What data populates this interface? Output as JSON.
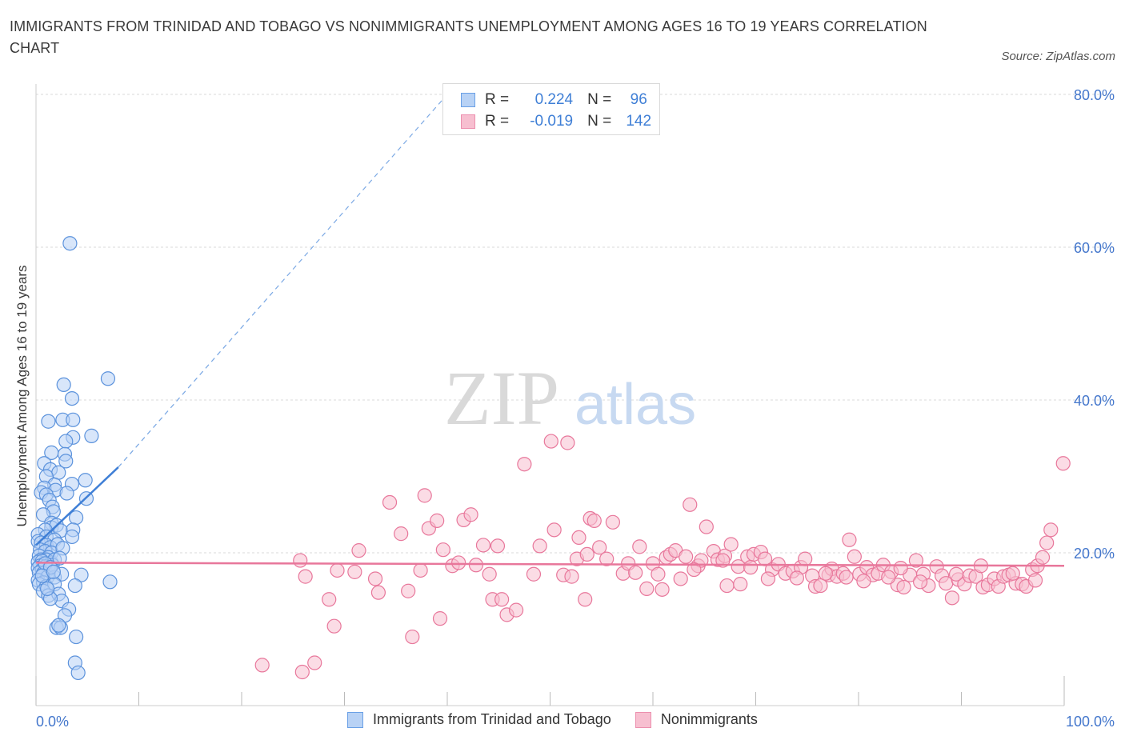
{
  "title": "IMMIGRANTS FROM TRINIDAD AND TOBAGO VS NONIMMIGRANTS UNEMPLOYMENT AMONG AGES 16 TO 19 YEARS CORRELATION CHART",
  "source": "Source: ZipAtlas.com",
  "watermark": {
    "zip": "ZIP",
    "atlas": "atlas"
  },
  "colors": {
    "blue": "#3f7fd6",
    "blue_fill": "#b8d2f5",
    "pink": "#e8779b",
    "pink_fill": "#f7bfd0",
    "grid": "#d9d9d9",
    "axis_text": "#4477cc"
  },
  "legend": {
    "rows": [
      {
        "r_label": "R =",
        "r_value": "0.224",
        "n_label": "N =",
        "n_value": "96"
      },
      {
        "r_label": "R =",
        "r_value": "-0.019",
        "n_label": "N =",
        "n_value": "142"
      }
    ]
  },
  "bottom_legend": [
    "Immigrants from Trinidad and Tobago",
    "Nonimmigrants"
  ],
  "chart_data": {
    "type": "scatter",
    "xlabel": "",
    "ylabel": "Unemployment Among Ages 16 to 19 years",
    "xlim": [
      0,
      100
    ],
    "ylim": [
      0,
      80
    ],
    "x_tick_labels": [
      "0.0%",
      "100.0%"
    ],
    "y_tick_labels": [
      {
        "v": 20,
        "label": "20.0%"
      },
      {
        "v": 40,
        "label": "40.0%"
      },
      {
        "v": 60,
        "label": "60.0%"
      },
      {
        "v": 80,
        "label": "80.0%"
      }
    ],
    "series": [
      {
        "name": "Immigrants from Trinidad and Tobago",
        "r": 0.224,
        "n": 96,
        "trend": {
          "x0": 0,
          "y0": 21,
          "x1": 8.0,
          "y1": 31.2,
          "dashed_to_x": 40,
          "dashed_to_y": 80
        },
        "points": [
          [
            3.3,
            60.5
          ],
          [
            7.0,
            42.8
          ],
          [
            2.7,
            42.0
          ],
          [
            3.5,
            40.2
          ],
          [
            1.2,
            37.2
          ],
          [
            2.6,
            37.4
          ],
          [
            3.6,
            37.4
          ],
          [
            3.6,
            35.1
          ],
          [
            5.4,
            35.3
          ],
          [
            2.9,
            34.6
          ],
          [
            1.5,
            33.1
          ],
          [
            2.8,
            32.9
          ],
          [
            2.9,
            32.0
          ],
          [
            0.8,
            31.7
          ],
          [
            1.4,
            30.9
          ],
          [
            2.2,
            30.5
          ],
          [
            1.0,
            30.0
          ],
          [
            3.5,
            29.0
          ],
          [
            1.8,
            28.9
          ],
          [
            4.8,
            29.5
          ],
          [
            0.8,
            28.5
          ],
          [
            1.9,
            28.2
          ],
          [
            3.0,
            27.8
          ],
          [
            0.5,
            27.9
          ],
          [
            1.0,
            27.6
          ],
          [
            1.3,
            26.9
          ],
          [
            4.9,
            27.1
          ],
          [
            1.6,
            26.0
          ],
          [
            1.7,
            25.4
          ],
          [
            0.7,
            25.0
          ],
          [
            1.5,
            23.9
          ],
          [
            1.5,
            23.3
          ],
          [
            3.9,
            24.6
          ],
          [
            2.0,
            23.6
          ],
          [
            0.9,
            23.0
          ],
          [
            2.4,
            22.9
          ],
          [
            3.6,
            23.0
          ],
          [
            0.2,
            22.4
          ],
          [
            1.0,
            22.1
          ],
          [
            1.8,
            21.7
          ],
          [
            3.5,
            22.1
          ],
          [
            0.2,
            21.5
          ],
          [
            0.5,
            21.3
          ],
          [
            1.0,
            21.0
          ],
          [
            1.4,
            20.7
          ],
          [
            2.1,
            21.1
          ],
          [
            0.4,
            20.4
          ],
          [
            0.9,
            20.2
          ],
          [
            1.5,
            20.0
          ],
          [
            0.3,
            19.6
          ],
          [
            1.2,
            19.4
          ],
          [
            0.5,
            19.1
          ],
          [
            1.0,
            19.1
          ],
          [
            0.2,
            18.8
          ],
          [
            0.6,
            18.9
          ],
          [
            1.5,
            18.7
          ],
          [
            1.8,
            19.1
          ],
          [
            0.4,
            18.3
          ],
          [
            0.9,
            18.2
          ],
          [
            0.2,
            18.0
          ],
          [
            0.6,
            17.8
          ],
          [
            1.2,
            17.8
          ],
          [
            1.6,
            18.4
          ],
          [
            0.3,
            17.4
          ],
          [
            0.7,
            17.3
          ],
          [
            1.1,
            16.8
          ],
          [
            1.8,
            16.8
          ],
          [
            0.2,
            16.4
          ],
          [
            0.7,
            16.1
          ],
          [
            2.5,
            17.2
          ],
          [
            4.4,
            17.1
          ],
          [
            0.3,
            15.9
          ],
          [
            1.0,
            15.6
          ],
          [
            1.8,
            15.9
          ],
          [
            3.8,
            15.7
          ],
          [
            0.7,
            15.0
          ],
          [
            1.2,
            14.4
          ],
          [
            2.2,
            14.6
          ],
          [
            7.2,
            16.2
          ],
          [
            2.5,
            13.7
          ],
          [
            1.4,
            14.0
          ],
          [
            3.2,
            12.6
          ],
          [
            2.8,
            11.8
          ],
          [
            2.0,
            10.2
          ],
          [
            2.4,
            10.2
          ],
          [
            3.9,
            9.0
          ],
          [
            3.8,
            5.6
          ],
          [
            4.1,
            4.3
          ],
          [
            2.2,
            10.5
          ],
          [
            0.9,
            18.6
          ],
          [
            1.4,
            18.1
          ],
          [
            0.6,
            17.0
          ],
          [
            1.7,
            17.5
          ],
          [
            2.6,
            20.6
          ],
          [
            2.3,
            19.3
          ],
          [
            1.1,
            15.3
          ]
        ]
      },
      {
        "name": "Nonimmigrants",
        "r": -0.019,
        "n": 142,
        "trend": {
          "x0": 0,
          "y0": 18.7,
          "x1": 100,
          "y1": 18.3
        },
        "points": [
          [
            34.4,
            26.6
          ],
          [
            22.0,
            5.3
          ],
          [
            25.9,
            4.4
          ],
          [
            27.1,
            5.6
          ],
          [
            29.0,
            10.4
          ],
          [
            28.5,
            13.9
          ],
          [
            25.7,
            19.0
          ],
          [
            26.2,
            16.9
          ],
          [
            29.3,
            17.7
          ],
          [
            31.4,
            20.3
          ],
          [
            31.0,
            17.5
          ],
          [
            33.0,
            16.6
          ],
          [
            33.3,
            14.8
          ],
          [
            36.2,
            15.0
          ],
          [
            35.5,
            22.5
          ],
          [
            37.4,
            17.7
          ],
          [
            36.6,
            9.0
          ],
          [
            37.8,
            27.5
          ],
          [
            38.2,
            23.2
          ],
          [
            39.0,
            24.2
          ],
          [
            39.3,
            11.4
          ],
          [
            39.6,
            20.4
          ],
          [
            40.5,
            18.3
          ],
          [
            41.6,
            24.3
          ],
          [
            41.1,
            18.7
          ],
          [
            42.3,
            25.0
          ],
          [
            42.8,
            18.4
          ],
          [
            43.5,
            21.0
          ],
          [
            44.1,
            17.2
          ],
          [
            44.4,
            13.9
          ],
          [
            45.3,
            13.9
          ],
          [
            44.9,
            20.9
          ],
          [
            45.8,
            11.9
          ],
          [
            46.7,
            12.5
          ],
          [
            47.5,
            31.6
          ],
          [
            48.4,
            17.2
          ],
          [
            49.0,
            20.9
          ],
          [
            50.1,
            34.6
          ],
          [
            50.4,
            23.0
          ],
          [
            51.3,
            17.1
          ],
          [
            51.7,
            34.4
          ],
          [
            52.1,
            16.9
          ],
          [
            52.6,
            19.2
          ],
          [
            52.8,
            22.0
          ],
          [
            53.6,
            19.8
          ],
          [
            53.4,
            13.9
          ],
          [
            53.9,
            24.5
          ],
          [
            54.3,
            24.2
          ],
          [
            54.8,
            20.7
          ],
          [
            55.5,
            19.2
          ],
          [
            56.1,
            24.0
          ],
          [
            57.1,
            17.3
          ],
          [
            57.6,
            18.6
          ],
          [
            58.3,
            17.4
          ],
          [
            58.7,
            20.8
          ],
          [
            59.4,
            15.3
          ],
          [
            60.0,
            18.6
          ],
          [
            60.5,
            17.2
          ],
          [
            61.3,
            19.4
          ],
          [
            61.7,
            19.8
          ],
          [
            62.2,
            20.3
          ],
          [
            62.7,
            16.6
          ],
          [
            63.2,
            19.5
          ],
          [
            63.6,
            26.3
          ],
          [
            64.4,
            18.3
          ],
          [
            64.7,
            19.0
          ],
          [
            65.2,
            23.4
          ],
          [
            65.9,
            20.2
          ],
          [
            66.3,
            19.1
          ],
          [
            67.0,
            19.6
          ],
          [
            67.6,
            21.1
          ],
          [
            67.2,
            15.7
          ],
          [
            68.3,
            18.2
          ],
          [
            68.5,
            15.9
          ],
          [
            69.2,
            19.5
          ],
          [
            69.8,
            19.8
          ],
          [
            70.5,
            20.1
          ],
          [
            70.9,
            19.2
          ],
          [
            71.6,
            17.8
          ],
          [
            72.2,
            18.5
          ],
          [
            72.9,
            17.3
          ],
          [
            73.6,
            17.6
          ],
          [
            74.4,
            18.1
          ],
          [
            74.8,
            19.2
          ],
          [
            75.5,
            17.0
          ],
          [
            75.8,
            15.6
          ],
          [
            76.3,
            15.7
          ],
          [
            77.1,
            17.1
          ],
          [
            77.4,
            17.9
          ],
          [
            77.9,
            16.9
          ],
          [
            78.5,
            17.3
          ],
          [
            79.1,
            21.7
          ],
          [
            79.6,
            19.5
          ],
          [
            80.1,
            17.2
          ],
          [
            80.8,
            18.1
          ],
          [
            81.4,
            17.1
          ],
          [
            81.9,
            17.3
          ],
          [
            82.4,
            18.4
          ],
          [
            83.2,
            17.5
          ],
          [
            83.8,
            15.8
          ],
          [
            84.4,
            15.5
          ],
          [
            85.0,
            17.1
          ],
          [
            85.6,
            19.0
          ],
          [
            86.3,
            17.2
          ],
          [
            86.8,
            15.7
          ],
          [
            87.6,
            18.2
          ],
          [
            88.1,
            17.0
          ],
          [
            88.5,
            16.0
          ],
          [
            89.1,
            14.1
          ],
          [
            89.7,
            16.5
          ],
          [
            90.3,
            15.9
          ],
          [
            90.8,
            17.0
          ],
          [
            91.4,
            16.9
          ],
          [
            92.1,
            15.5
          ],
          [
            92.6,
            15.8
          ],
          [
            93.2,
            16.6
          ],
          [
            93.6,
            15.6
          ],
          [
            94.1,
            16.9
          ],
          [
            94.6,
            17.1
          ],
          [
            95.3,
            16.0
          ],
          [
            95.9,
            15.9
          ],
          [
            96.3,
            15.6
          ],
          [
            96.9,
            17.8
          ],
          [
            97.4,
            18.3
          ],
          [
            97.9,
            19.4
          ],
          [
            98.3,
            21.3
          ],
          [
            98.7,
            23.0
          ],
          [
            99.9,
            31.7
          ],
          [
            97.2,
            16.4
          ],
          [
            95.0,
            17.3
          ],
          [
            91.9,
            18.3
          ],
          [
            89.5,
            17.2
          ],
          [
            86.0,
            16.2
          ],
          [
            84.1,
            18.0
          ],
          [
            82.9,
            16.8
          ],
          [
            80.5,
            16.3
          ],
          [
            78.8,
            16.8
          ],
          [
            76.8,
            17.3
          ],
          [
            74.0,
            16.7
          ],
          [
            71.2,
            16.6
          ],
          [
            69.5,
            18.1
          ],
          [
            66.8,
            19.0
          ],
          [
            64.0,
            17.8
          ],
          [
            60.9,
            15.2
          ]
        ]
      }
    ]
  }
}
